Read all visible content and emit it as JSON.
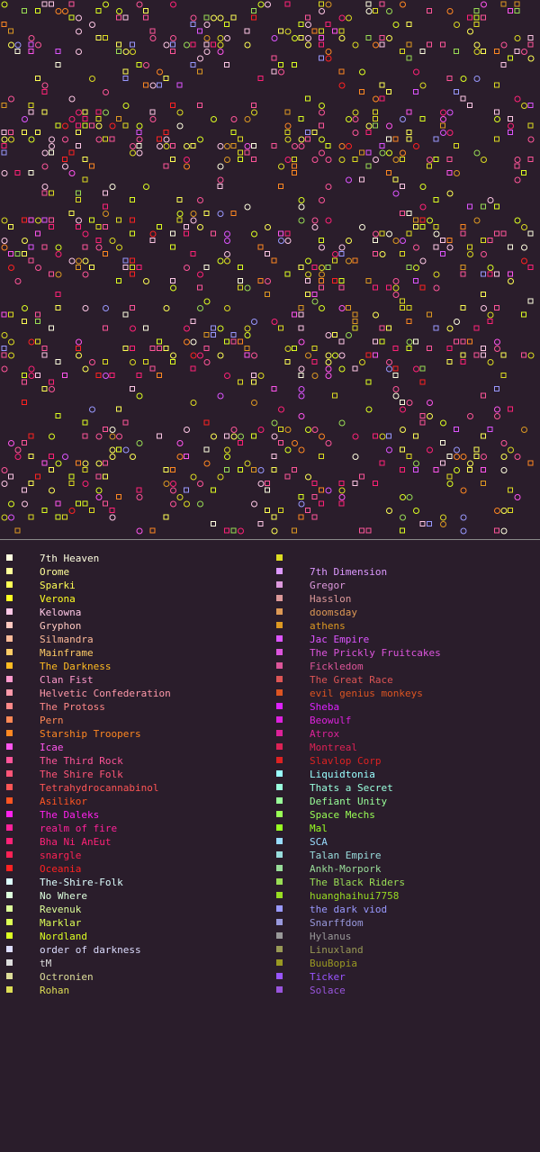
{
  "colors": {
    "background": "#2a1d2b",
    "divider": "#8a8a8a"
  },
  "legend_left": [
    {
      "name": "7th Heaven",
      "color": "#ffffe0"
    },
    {
      "name": "Orome",
      "color": "#ffff99"
    },
    {
      "name": "Sparki",
      "color": "#ffff55"
    },
    {
      "name": "Verona",
      "color": "#ffff22"
    },
    {
      "name": "Kelowna",
      "color": "#ffc8e6"
    },
    {
      "name": "Gryphon",
      "color": "#ffc8c0"
    },
    {
      "name": "Silmandra",
      "color": "#ffbb99"
    },
    {
      "name": "Mainframe",
      "color": "#ffcc66"
    },
    {
      "name": "The Darkness",
      "color": "#ffbb22"
    },
    {
      "name": "Clan Fist",
      "color": "#ff99cc"
    },
    {
      "name": "Helvetic Confederation",
      "color": "#ff99aa"
    },
    {
      "name": "The Protoss",
      "color": "#ff8888"
    },
    {
      "name": "Pern",
      "color": "#ff8855"
    },
    {
      "name": "Starship Troopers",
      "color": "#ff8822"
    },
    {
      "name": "Icae",
      "color": "#ff55ee"
    },
    {
      "name": "The Third Rock",
      "color": "#ff5599"
    },
    {
      "name": "The Shire Folk",
      "color": "#ff5577"
    },
    {
      "name": "Tetrahydrocannabinol",
      "color": "#ff5555"
    },
    {
      "name": "Asilikor",
      "color": "#ff5522"
    },
    {
      "name": "The Daleks",
      "color": "#ff22ee"
    },
    {
      "name": "realm of fire",
      "color": "#ff2299"
    },
    {
      "name": "Bha Ni AnEut",
      "color": "#ff2277"
    },
    {
      "name": "snargle",
      "color": "#ff2255"
    },
    {
      "name": "Oceania",
      "color": "#ff2222"
    },
    {
      "name": "The-Shire-Folk",
      "color": "#ddffff"
    },
    {
      "name": "No Where",
      "color": "#ddffdd"
    },
    {
      "name": "Revenuk",
      "color": "#ddff99"
    },
    {
      "name": "Marklar",
      "color": "#ddff55"
    },
    {
      "name": "Nordland",
      "color": "#ddff22"
    },
    {
      "name": "order of darkness",
      "color": "#ddddff"
    },
    {
      "name": "tM",
      "color": "#dddddd"
    },
    {
      "name": "Octronien",
      "color": "#dddd99"
    },
    {
      "name": "Rohan",
      "color": "#dddd55"
    }
  ],
  "legend_right": [
    {
      "name": "",
      "color": "#dddd22"
    },
    {
      "name": "7th Dimension",
      "color": "#dd99ff"
    },
    {
      "name": "Gregor",
      "color": "#dd99dd"
    },
    {
      "name": "Hasslon",
      "color": "#dd9999"
    },
    {
      "name": "doomsday",
      "color": "#dd9955"
    },
    {
      "name": "athens",
      "color": "#dd9922"
    },
    {
      "name": "Jac Empire",
      "color": "#dd55ff"
    },
    {
      "name": "The Prickly Fruitcakes",
      "color": "#dd55dd"
    },
    {
      "name": "Fickledom",
      "color": "#dd5599"
    },
    {
      "name": "The Great Race",
      "color": "#dd5555"
    },
    {
      "name": "evil genius monkeys",
      "color": "#dd5522"
    },
    {
      "name": "Sheba",
      "color": "#dd22ff"
    },
    {
      "name": "Beowulf",
      "color": "#dd22dd"
    },
    {
      "name": "Atrox",
      "color": "#dd2299"
    },
    {
      "name": "Montreal",
      "color": "#dd2255"
    },
    {
      "name": "Slavlop Corp",
      "color": "#dd2222"
    },
    {
      "name": "Liquidtonia",
      "color": "#99ffff"
    },
    {
      "name": "Thats a Secret",
      "color": "#99ffdd"
    },
    {
      "name": "Defiant Unity",
      "color": "#99ff99"
    },
    {
      "name": "Space Mechs",
      "color": "#99ff55"
    },
    {
      "name": "Mal",
      "color": "#99ff22"
    },
    {
      "name": "SCA",
      "color": "#99ddff"
    },
    {
      "name": "Talan Empire",
      "color": "#99dddd"
    },
    {
      "name": "Ankh-Morpork",
      "color": "#99dd99"
    },
    {
      "name": "The Black Riders",
      "color": "#99dd55"
    },
    {
      "name": "huanghaihui7758",
      "color": "#99dd22"
    },
    {
      "name": "the dark viod",
      "color": "#9999ff"
    },
    {
      "name": "Snarffdom",
      "color": "#9999dd"
    },
    {
      "name": "Hylanus",
      "color": "#999999"
    },
    {
      "name": "Linuxland",
      "color": "#999955"
    },
    {
      "name": "BuuBopia",
      "color": "#999922"
    },
    {
      "name": "Ticker",
      "color": "#9955ff"
    },
    {
      "name": "Solace",
      "color": "#9955dd"
    }
  ]
}
